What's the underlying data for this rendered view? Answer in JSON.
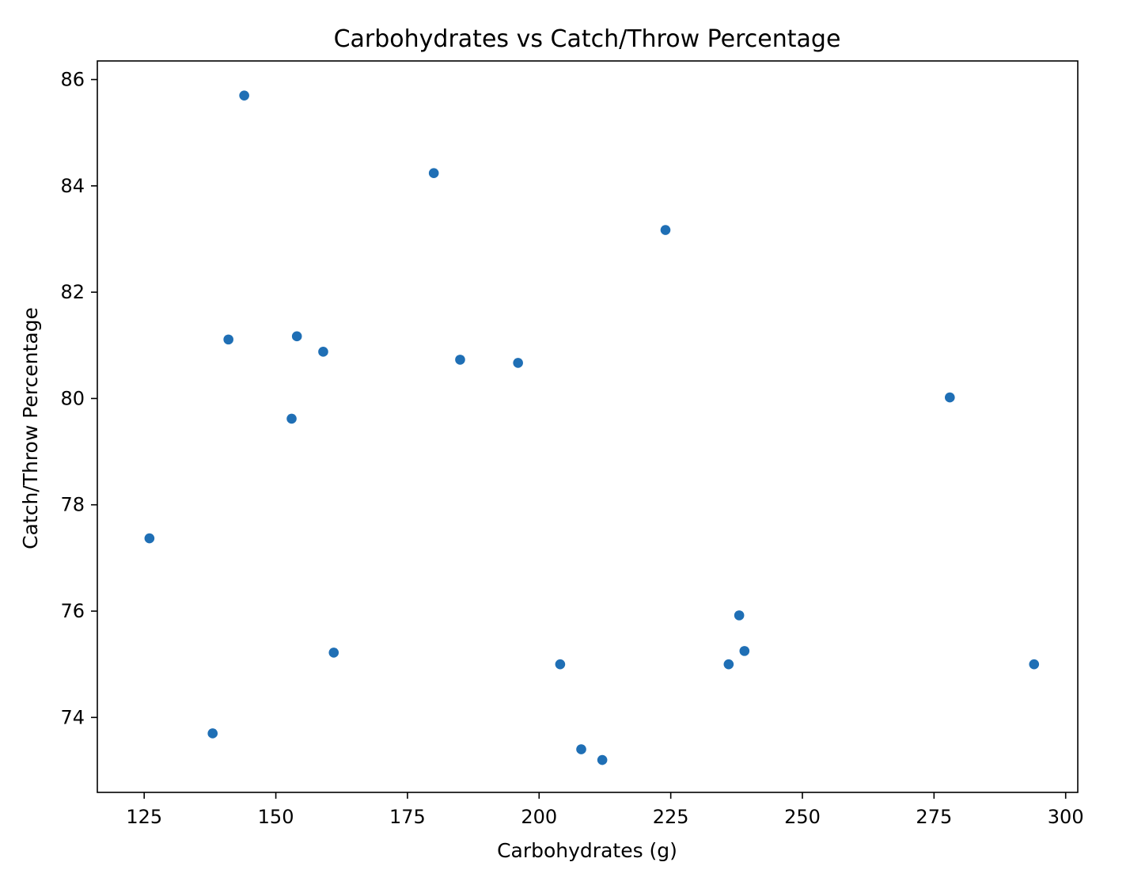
{
  "chart_data": {
    "type": "scatter",
    "title": "Carbohydrates vs Catch/Throw Percentage",
    "xlabel": "Carbohydrates (g)",
    "ylabel": "Catch/Throw Percentage",
    "xlim": [
      116.1,
      302.3
    ],
    "ylim": [
      72.59,
      86.35
    ],
    "xticks": [
      125,
      150,
      175,
      200,
      225,
      250,
      275,
      300
    ],
    "yticks": [
      74,
      76,
      78,
      80,
      82,
      84,
      86
    ],
    "grid": false,
    "marker_color": "#1f6fb5",
    "points": [
      {
        "x": 126,
        "y": 77.37
      },
      {
        "x": 138,
        "y": 73.7
      },
      {
        "x": 141,
        "y": 81.11
      },
      {
        "x": 144,
        "y": 85.7
      },
      {
        "x": 153,
        "y": 79.62
      },
      {
        "x": 154,
        "y": 81.17
      },
      {
        "x": 159,
        "y": 80.88
      },
      {
        "x": 161,
        "y": 75.22
      },
      {
        "x": 180,
        "y": 84.24
      },
      {
        "x": 185,
        "y": 80.73
      },
      {
        "x": 196,
        "y": 80.67
      },
      {
        "x": 204,
        "y": 75.0
      },
      {
        "x": 208,
        "y": 73.4
      },
      {
        "x": 212,
        "y": 73.2
      },
      {
        "x": 224,
        "y": 83.17
      },
      {
        "x": 236,
        "y": 75.0
      },
      {
        "x": 238,
        "y": 75.92
      },
      {
        "x": 239,
        "y": 75.25
      },
      {
        "x": 278,
        "y": 80.02
      },
      {
        "x": 294,
        "y": 75.0
      }
    ]
  }
}
